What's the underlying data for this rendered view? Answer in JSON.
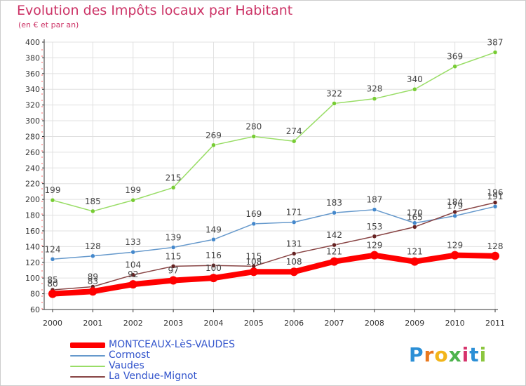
{
  "header": {
    "title": "Evolution des Impôts locaux par Habitant",
    "subtitle": "(en € et par an)"
  },
  "logo": {
    "text": [
      "P",
      "r",
      "o",
      "x",
      "i",
      "t",
      "i"
    ],
    "colors": [
      "#2b8fd6",
      "#e8781e",
      "#f2b51a",
      "#4db34d",
      "#d6336c",
      "#2b8fd6",
      "#8cc63f"
    ]
  },
  "chart_data": {
    "type": "line",
    "x": [
      "2000",
      "2001",
      "2002",
      "2003",
      "2004",
      "2005",
      "2006",
      "2007",
      "2008",
      "2009",
      "2010",
      "2011"
    ],
    "ylim": [
      60,
      400
    ],
    "yticks": [
      "60",
      "80",
      "100",
      "120",
      "140",
      "160",
      "180",
      "200",
      "220",
      "240",
      "260",
      "280",
      "300",
      "320",
      "340",
      "360",
      "380",
      "400"
    ],
    "grid": true,
    "legend_position": "bottom-left",
    "series": [
      {
        "name": "Vaudes",
        "color": "#99dd66",
        "marker": "#77cc33",
        "values": [
          199,
          185,
          199,
          215,
          269,
          280,
          274,
          322,
          328,
          340,
          369,
          387
        ],
        "labels": [
          "199",
          "185",
          "199",
          "215",
          "269",
          "280",
          "274",
          "322",
          "328",
          "340",
          "369",
          "387"
        ]
      },
      {
        "name": "Cormost",
        "color": "#6699cc",
        "marker": "#4488cc",
        "values": [
          124,
          128,
          133,
          139,
          149,
          169,
          171,
          183,
          187,
          170,
          179,
          191
        ],
        "labels": [
          "124",
          "128",
          "133",
          "139",
          "149",
          "169",
          "171",
          "183",
          "187",
          "170",
          "179",
          "191"
        ]
      },
      {
        "name": "La Vendue-Mignot",
        "color": "#884444",
        "marker": "#662222",
        "values": [
          85,
          89,
          104,
          115,
          116,
          115,
          131,
          142,
          153,
          165,
          184,
          196
        ],
        "labels": [
          "85",
          "89",
          "104",
          "115",
          "116",
          "115",
          "131",
          "142",
          "153",
          "165",
          "184",
          "196"
        ]
      },
      {
        "name": "MONTCEAUX-LèS-VAUDES",
        "color": "#ff0000",
        "marker": "#ff0000",
        "values": [
          80,
          83,
          92,
          97,
          100,
          108,
          108,
          121,
          129,
          121,
          129,
          128
        ],
        "labels": [
          "80",
          "83",
          "92",
          "97",
          "100",
          "108",
          "108",
          "121",
          "129",
          "121",
          "129",
          "128"
        ]
      }
    ],
    "legend_order": [
      "MONTCEAUX-LèS-VAUDES",
      "Cormost",
      "Vaudes",
      "La Vendue-Mignot"
    ]
  }
}
